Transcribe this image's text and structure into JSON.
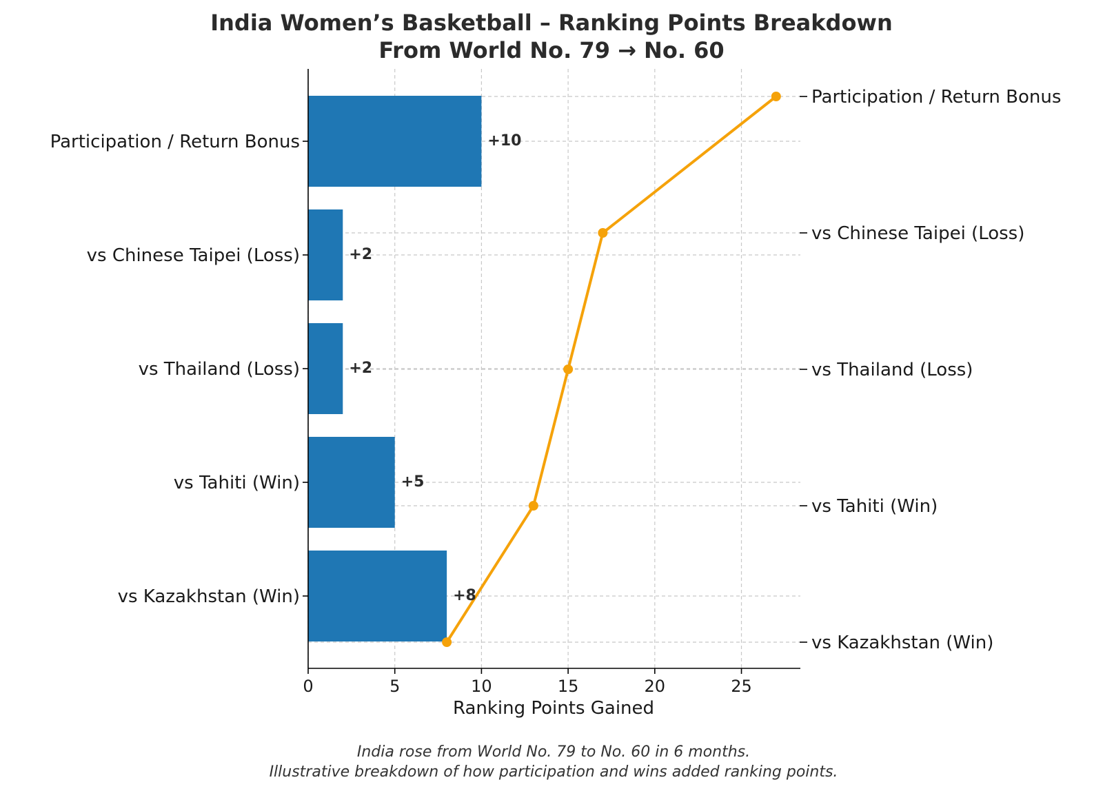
{
  "chart_data": {
    "type": "bar",
    "orientation": "horizontal",
    "title": "India Women’s Basketball – Ranking Points Breakdown",
    "subtitle": "From World No. 79 → No. 60",
    "xlabel": "Ranking Points Gained",
    "xlim": [
      0,
      28.4
    ],
    "xticks": [
      0,
      5,
      10,
      15,
      20,
      25
    ],
    "grid": true,
    "categories": [
      "Participation / Return Bonus",
      "vs Chinese Taipei (Loss)",
      "vs Thailand (Loss)",
      "vs Tahiti (Win)",
      "vs Kazakhstan (Win)"
    ],
    "values": [
      10,
      2,
      2,
      5,
      8
    ],
    "bar_labels": [
      "+10",
      "+2",
      "+2",
      "+5",
      "+8"
    ],
    "bar_color": "#1f77b4",
    "cumulative_line": {
      "type": "line",
      "color": "#f5a20a",
      "categories": [
        "Participation / Return Bonus",
        "vs Chinese Taipei (Loss)",
        "vs Thailand (Loss)",
        "vs Tahiti (Win)",
        "vs Kazakhstan (Win)"
      ],
      "values": [
        27,
        17,
        15,
        13,
        8
      ]
    },
    "caption": [
      "India rose from World No. 79 to No. 60 in 6 months.",
      "Illustrative breakdown of how participation and wins added ranking points."
    ]
  }
}
